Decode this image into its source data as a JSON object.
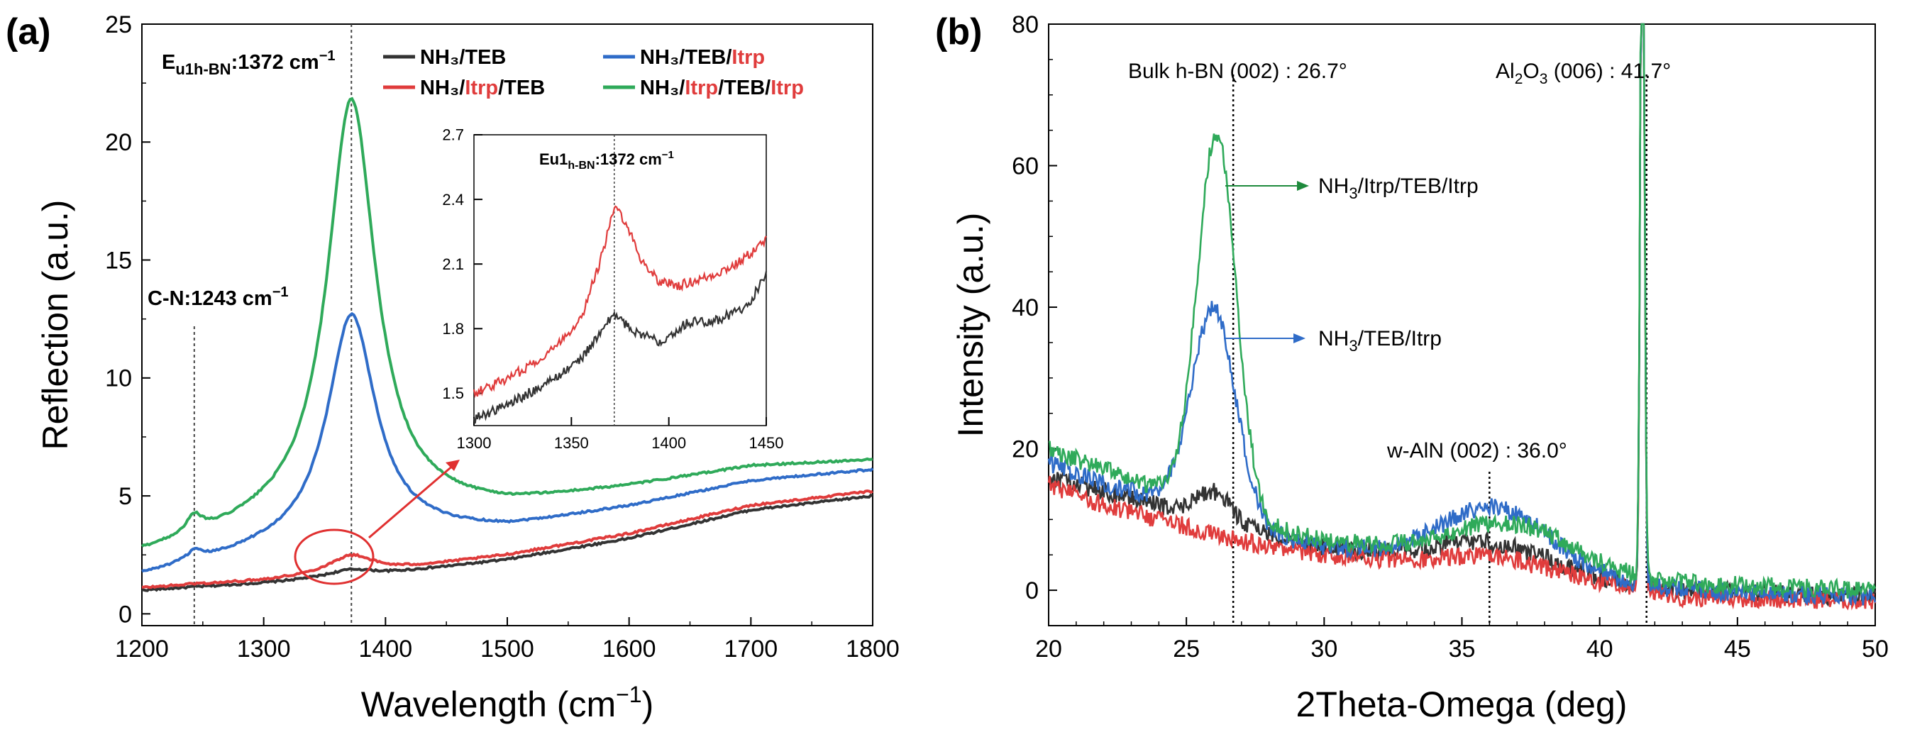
{
  "colors": {
    "teb": "#333333",
    "itrp_teb": "#e03c3c",
    "teb_itrp": "#2f6cc8",
    "itrp_teb_itrp": "#2faa5a",
    "itrp_text": "#e03c3c",
    "green_text": "#1e8a3c",
    "blue_text": "#2f6cc8",
    "annotation": "#e03030"
  },
  "chart_data": [
    {
      "id": "a",
      "panel_label": "(a)",
      "type": "line",
      "xlabel": "Wavelength (cm",
      "xlabel_sup": "−1",
      "xlabel_tail": ")",
      "ylabel": "Reflection (a.u.)",
      "xlim": [
        1200,
        1800
      ],
      "ylim": [
        -0.5,
        25
      ],
      "xticks": [
        "1200",
        "1300",
        "1400",
        "1500",
        "1600",
        "1700",
        "1800"
      ],
      "yticks": [
        "0",
        "5",
        "10",
        "15",
        "20",
        "25"
      ],
      "legend": {
        "teb": "NH₃/TEB",
        "itrp_teb": {
          "pre": "NH₃/",
          "itrp": "Itrp",
          "post": "/TEB"
        },
        "teb_itrp": {
          "pre": "NH₃/TEB/",
          "itrp": "Itrp"
        },
        "itrp_teb_itrp": {
          "pre": "NH₃/",
          "itrp1": "Itrp",
          "mid": "/TEB/",
          "itrp2": "Itrp"
        }
      },
      "annotations": {
        "peak": {
          "main": "E",
          "sub": "u1h-BN",
          "tail": ":1372 cm",
          "sup": "−1",
          "x": 1372
        },
        "cn": {
          "main": "C-N:1243 cm",
          "sup": "−1",
          "x": 1243
        }
      },
      "series": [
        {
          "name": "NH3/TEB",
          "key": "teb",
          "peak_height": 0.3,
          "baseline": [
            [
              1200,
              1.0
            ],
            [
              1300,
              1.3
            ],
            [
              1400,
              1.7
            ],
            [
              1500,
              2.3
            ],
            [
              1600,
              3.2
            ],
            [
              1700,
              4.4
            ],
            [
              1800,
              5.0
            ]
          ]
        },
        {
          "name": "NH3/Itrp/TEB",
          "key": "itrp_teb",
          "peak_height": 0.8,
          "baseline": [
            [
              1200,
              1.1
            ],
            [
              1300,
              1.4
            ],
            [
              1400,
              1.8
            ],
            [
              1500,
              2.5
            ],
            [
              1600,
              3.4
            ],
            [
              1700,
              4.6
            ],
            [
              1800,
              5.2
            ]
          ]
        },
        {
          "name": "NH3/TEB/Itrp",
          "key": "teb_itrp",
          "peak_height": 9.6,
          "baseline": [
            [
              1200,
              1.6
            ],
            [
              1300,
              2.6
            ],
            [
              1400,
              3.3
            ],
            [
              1500,
              3.6
            ],
            [
              1600,
              4.5
            ],
            [
              1700,
              5.6
            ],
            [
              1800,
              6.1
            ]
          ]
        },
        {
          "name": "NH3/Itrp/TEB/Itrp",
          "key": "itrp_teb_itrp",
          "peak_height": 17.8,
          "baseline": [
            [
              1200,
              2.5
            ],
            [
              1300,
              3.6
            ],
            [
              1400,
              4.2
            ],
            [
              1500,
              4.5
            ],
            [
              1600,
              5.3
            ],
            [
              1700,
              6.2
            ],
            [
              1800,
              6.5
            ]
          ]
        }
      ],
      "inset": {
        "xlim": [
          1300,
          1450
        ],
        "ylim": [
          1.35,
          2.7
        ],
        "xticks": [
          "1300",
          "1350",
          "1400",
          "1450"
        ],
        "yticks": [
          "1.5",
          "1.8",
          "2.1",
          "2.4",
          "2.7"
        ],
        "annotation": {
          "main": "Eu1",
          "sub": "h-BN",
          "tail": ":1372 cm",
          "sup": "−1",
          "x": 1372
        },
        "series": [
          {
            "key": "itrp_teb",
            "points": [
              [
                1300,
                1.5
              ],
              [
                1320,
                1.58
              ],
              [
                1340,
                1.7
              ],
              [
                1355,
                1.85
              ],
              [
                1365,
                2.12
              ],
              [
                1372,
                2.36
              ],
              [
                1378,
                2.3
              ],
              [
                1385,
                2.13
              ],
              [
                1395,
                2.02
              ],
              [
                1405,
                2.0
              ],
              [
                1420,
                2.04
              ],
              [
                1435,
                2.1
              ],
              [
                1450,
                2.21
              ]
            ]
          },
          {
            "key": "teb",
            "points": [
              [
                1300,
                1.38
              ],
              [
                1320,
                1.46
              ],
              [
                1340,
                1.56
              ],
              [
                1355,
                1.66
              ],
              [
                1365,
                1.78
              ],
              [
                1372,
                1.87
              ],
              [
                1380,
                1.8
              ],
              [
                1395,
                1.74
              ],
              [
                1410,
                1.83
              ],
              [
                1425,
                1.84
              ],
              [
                1440,
                1.9
              ],
              [
                1450,
                2.05
              ]
            ]
          }
        ]
      }
    },
    {
      "id": "b",
      "panel_label": "(b)",
      "type": "line",
      "xlabel": "2Theta-Omega (deg)",
      "ylabel": "Intensity (a.u.)",
      "xlim": [
        20,
        50
      ],
      "ylim": [
        -5,
        80
      ],
      "xticks": [
        "20",
        "25",
        "30",
        "35",
        "40",
        "45",
        "50"
      ],
      "yticks": [
        "0",
        "20",
        "40",
        "60",
        "80"
      ],
      "annotations": {
        "bulk": {
          "text": "Bulk h-BN (002) : 26.7°",
          "x": 26.7
        },
        "al2o3": {
          "pre": "Al",
          "sub1": "2",
          "mid": "O",
          "sub2": "3",
          "tail": " (006) : 41.7°",
          "x": 41.7
        },
        "aln": {
          "text": "w-AlN (002) : 36.0°",
          "x": 36.0
        },
        "green": {
          "pre": "NH",
          "sub": "3",
          "tail": "/Itrp/TEB/Itrp"
        },
        "blue": {
          "pre": "NH",
          "sub": "3",
          "tail": "/TEB/Itrp"
        }
      },
      "series": [
        {
          "name": "NH3/TEB",
          "key": "teb",
          "peaks": [
            [
              26.0,
              4,
              0.6
            ],
            [
              36.0,
              3,
              1.8
            ]
          ],
          "baseline": [
            [
              20,
              16
            ],
            [
              22,
              14
            ],
            [
              25,
              11
            ],
            [
              28,
              8
            ],
            [
              30,
              6
            ],
            [
              33,
              5
            ],
            [
              38,
              3
            ],
            [
              41,
              1
            ],
            [
              43,
              0
            ],
            [
              50,
              -1
            ]
          ]
        },
        {
          "name": "NH3/Itrp/TEB",
          "key": "itrp_teb",
          "peaks": [
            [
              36.2,
              2,
              1.8
            ]
          ],
          "baseline": [
            [
              20,
              15
            ],
            [
              22,
              12
            ],
            [
              25,
              9
            ],
            [
              28,
              6
            ],
            [
              30,
              5
            ],
            [
              33,
              4
            ],
            [
              38,
              2
            ],
            [
              41,
              0.5
            ],
            [
              43,
              -1
            ],
            [
              50,
              -1.5
            ]
          ]
        },
        {
          "name": "NH3/TEB/Itrp",
          "key": "teb_itrp",
          "peaks": [
            [
              26.0,
              29,
              0.8
            ],
            [
              36.2,
              8,
              1.9
            ]
          ],
          "baseline": [
            [
              20,
              18
            ],
            [
              22,
              15
            ],
            [
              25,
              12
            ],
            [
              28,
              8
            ],
            [
              30,
              6
            ],
            [
              33,
              5
            ],
            [
              38,
              3
            ],
            [
              41,
              1
            ],
            [
              43,
              0
            ],
            [
              50,
              -1
            ]
          ]
        },
        {
          "name": "NH3/Itrp/TEB/Itrp",
          "key": "itrp_teb_itrp",
          "peaks": [
            [
              26.1,
              53,
              0.7
            ],
            [
              36.8,
              5,
              2.0
            ]
          ],
          "baseline": [
            [
              20,
              20
            ],
            [
              22,
              17
            ],
            [
              25,
              13
            ],
            [
              28,
              9
            ],
            [
              30,
              7
            ],
            [
              33,
              6
            ],
            [
              38,
              4
            ],
            [
              41,
              2
            ],
            [
              43,
              1
            ],
            [
              50,
              0
            ]
          ]
        }
      ]
    }
  ]
}
